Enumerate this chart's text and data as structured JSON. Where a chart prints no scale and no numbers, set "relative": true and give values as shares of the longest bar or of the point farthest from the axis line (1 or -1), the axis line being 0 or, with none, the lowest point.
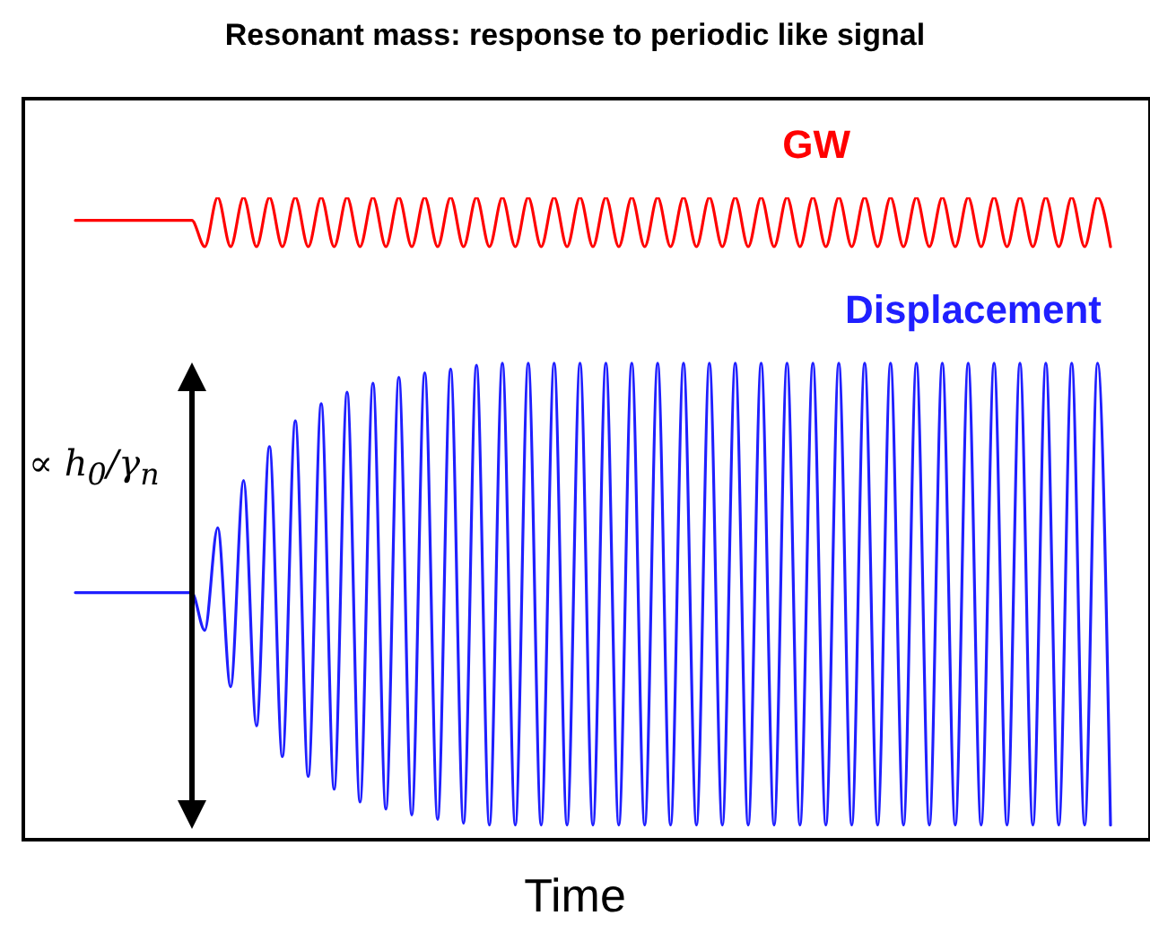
{
  "chart_data": {
    "type": "line",
    "title": "Resonant mass: response to periodic like signal",
    "xlabel": "Time",
    "relative": true,
    "tick_labels": false,
    "grid": false,
    "legend": false,
    "marker": "none",
    "line_style": "solid",
    "annotations": [
      "∝ h$_{0}$/γ$_{n}$"
    ],
    "categories": [
      null,
      null,
      null,
      null,
      null,
      null,
      null,
      null,
      null,
      null,
      null,
      null,
      null,
      null,
      null,
      null,
      null,
      null,
      null,
      null,
      null,
      null,
      null,
      null,
      null,
      null,
      null,
      null,
      null,
      null,
      null,
      null,
      null,
      null,
      null,
      null,
      null,
      null,
      null,
      null,
      null,
      null,
      null,
      null,
      null,
      null,
      null,
      null,
      null,
      null,
      null,
      null,
      null,
      null,
      null,
      null,
      null,
      null,
      null,
      null,
      null,
      null,
      null,
      null,
      null,
      null,
      null,
      null,
      null,
      null,
      null,
      null,
      null,
      null,
      null,
      null,
      null,
      null,
      null,
      null,
      null
    ],
    "series": [
      {
        "name": "GW",
        "color": "#ff0000",
        "values": [
          0.964,
          0.964,
          0.964,
          0.964,
          0.964,
          0.964,
          0.964,
          0.964,
          0.964,
          0.964,
          0.923,
          1,
          0.923,
          1,
          0.923,
          1,
          0.923,
          1,
          0.923,
          1,
          0.923,
          1,
          0.923,
          1,
          0.923,
          1,
          0.923,
          1,
          0.923,
          1,
          0.923,
          1,
          0.923,
          1,
          0.923,
          1,
          0.923,
          1,
          0.923,
          1,
          0.923,
          1,
          0.923,
          1,
          0.923,
          1,
          0.923,
          1,
          0.923,
          1,
          0.923,
          1,
          0.923,
          1,
          0.923,
          1,
          0.923,
          1,
          0.923,
          1,
          0.923,
          1,
          0.923,
          1,
          0.923,
          1,
          0.923,
          1,
          0.923,
          1,
          0.923,
          1,
          0.923,
          1,
          0.923,
          1,
          0.923,
          1,
          0.923,
          1,
          0.923
        ]
      },
      {
        "name": "Displacement",
        "color": "#1f1fff",
        "values": [
          0.383,
          0.383,
          0.383,
          0.383,
          0.383,
          0.383,
          0.383,
          0.383,
          0.383,
          0.383,
          0.324,
          0.484,
          0.236,
          0.558,
          0.175,
          0.611,
          0.127,
          0.651,
          0.096,
          0.678,
          0.076,
          0.696,
          0.056,
          0.71,
          0.045,
          0.719,
          0.036,
          0.726,
          0.029,
          0.732,
          0.023,
          0.738,
          0.02,
          0.741,
          0.02,
          0.741,
          0.02,
          0.741,
          0.02,
          0.741,
          0.02,
          0.741,
          0.02,
          0.741,
          0.02,
          0.741,
          0.02,
          0.741,
          0.02,
          0.741,
          0.02,
          0.741,
          0.02,
          0.741,
          0.02,
          0.741,
          0.02,
          0.741,
          0.02,
          0.741,
          0.02,
          0.741,
          0.02,
          0.741,
          0.02,
          0.741,
          0.02,
          0.741,
          0.02,
          0.741,
          0.02,
          0.741,
          0.02,
          0.741,
          0.02,
          0.741,
          0.02,
          0.741,
          0.02,
          0.741,
          0.02
        ]
      }
    ]
  }
}
